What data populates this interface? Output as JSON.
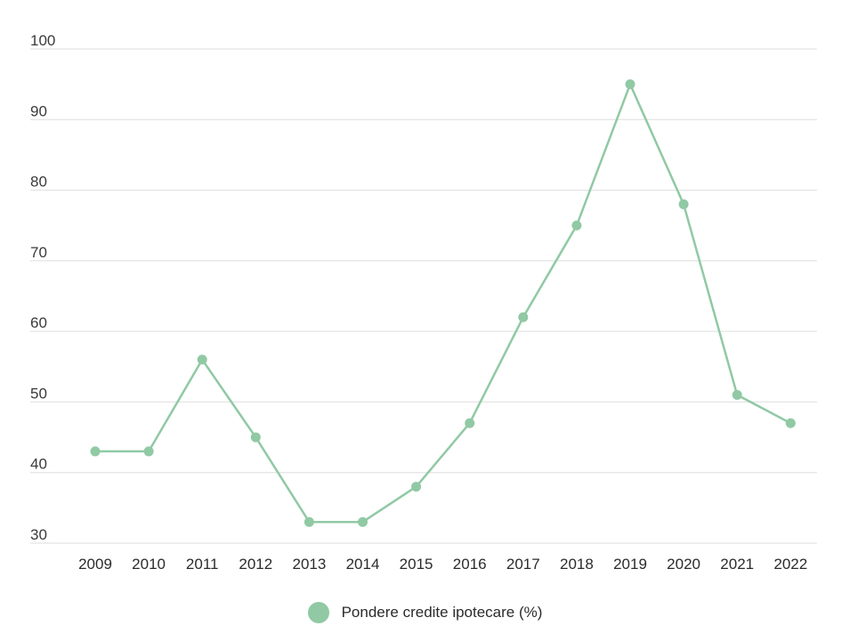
{
  "colors": {
    "series": "#90c9a4",
    "grid": "#dedede",
    "text": "#2b2b2b"
  },
  "chart_data": {
    "type": "line",
    "title": "",
    "xlabel": "",
    "ylabel": "",
    "categories": [
      "2009",
      "2010",
      "2011",
      "2012",
      "2013",
      "2014",
      "2015",
      "2016",
      "2017",
      "2018",
      "2019",
      "2020",
      "2021",
      "2022"
    ],
    "series": [
      {
        "name": "Pondere credite ipotecare (%)",
        "values": [
          43,
          43,
          56,
          45,
          33,
          33,
          38,
          47,
          62,
          75,
          95,
          78,
          51,
          47
        ]
      }
    ],
    "ylim": [
      30,
      100
    ],
    "yticks": [
      30,
      40,
      50,
      60,
      70,
      80,
      90,
      100
    ],
    "grid": true,
    "markers": true,
    "legend": "bottom-center"
  }
}
